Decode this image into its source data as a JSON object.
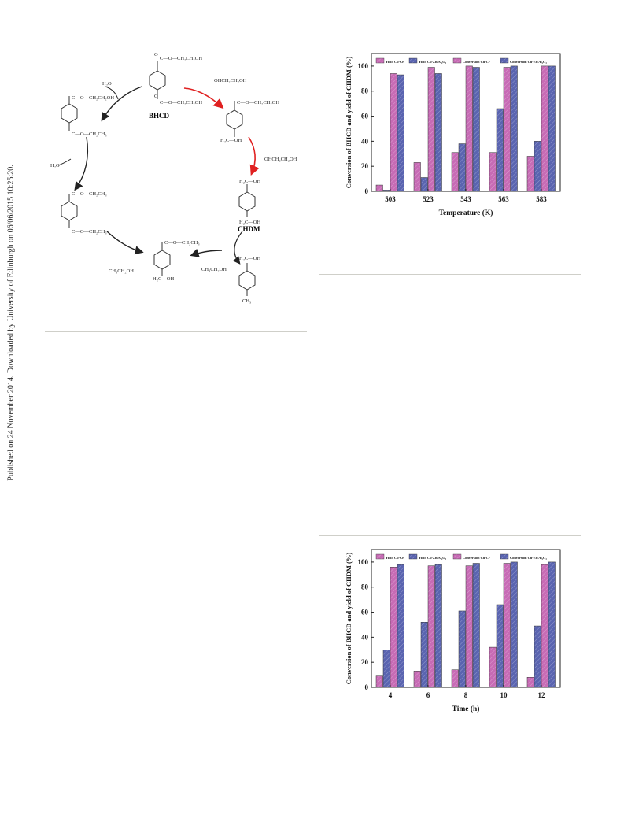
{
  "sidebar_text": "Published on 24 November 2014. Downloaded by University of Edinburgh on 06/06/2015 10:25:20.",
  "scheme": {
    "bhcd": "BHCD",
    "chdm": "CHDM",
    "labels": {
      "top_ester1": "C—O—CH₂CH₂OH",
      "top_ester2": "C—O—CH₂CH₂OH",
      "h2o_1": "H₂O",
      "h2o_2": "H₂O",
      "eg_out_1": "OHCH₂CH₂OH",
      "eg_out_2": "OHCH₂CH₂OH",
      "ethanol_1": "CH₃CH₂OH",
      "ethanol_2": "CH₃CH₂OH",
      "left_top_a": "C—O—CH₂CH₂OH",
      "left_top_b": "C—O—CH₂CH₃",
      "left_mid_a": "C—O—CH₂CH₃",
      "left_mid_b": "C—O—CH₂CH₃",
      "right_top_a": "C—O—CH₂CH₂OH",
      "right_top_b": "H₂C—OH",
      "chdm_a": "H₂C—OH",
      "chdm_b": "H₂C—OH",
      "bottom_a": "C—O—CH₂CH₃",
      "bottom_b": "H₂C—OH",
      "methyl_a": "H₂C—OH",
      "methyl_b": "CH₃",
      "o": "O"
    }
  },
  "chart_data": [
    {
      "type": "bar",
      "ylabel": "Conversion of BHCD and yield of CHDM (%)",
      "xlabel": "Temperature (K)",
      "categories": [
        "503",
        "523",
        "543",
        "563",
        "583"
      ],
      "ylim": [
        0,
        110
      ],
      "yticks": [
        "0",
        "20",
        "40",
        "60",
        "80",
        "100"
      ],
      "legend_position": "top",
      "series": [
        {
          "name": "Yield  Cu-Cr",
          "color": "#c76bb5",
          "values": [
            5,
            23,
            31,
            31,
            28
          ]
        },
        {
          "name": "Yield  Cu-Zn/Al₂O₃",
          "color": "#5a64b0",
          "values": [
            1,
            11,
            38,
            66,
            40
          ]
        },
        {
          "name": "Conversion  Cu-Cr",
          "color": "#c76bb5",
          "values": [
            94,
            99,
            100,
            99,
            100
          ]
        },
        {
          "name": "Conversion  Cu-Zn/Al₂O₃",
          "color": "#5a64b0",
          "values": [
            93,
            94,
            99,
            100,
            100
          ]
        }
      ]
    },
    {
      "type": "bar",
      "ylabel": "Conversion of BHCD and yield of CHDM (%)",
      "xlabel": "Time (h)",
      "categories": [
        "4",
        "6",
        "8",
        "10",
        "12"
      ],
      "ylim": [
        0,
        110
      ],
      "yticks": [
        "0",
        "20",
        "40",
        "60",
        "80",
        "100"
      ],
      "legend_position": "top",
      "series": [
        {
          "name": "Yield  Cu-Cr",
          "color": "#c76bb5",
          "values": [
            9,
            13,
            14,
            32,
            8
          ]
        },
        {
          "name": "Yield  Cu-Zn/Al₂O₃",
          "color": "#5a64b0",
          "values": [
            30,
            52,
            61,
            66,
            49
          ]
        },
        {
          "name": "Conversion  Cu-Cr",
          "color": "#c76bb5",
          "values": [
            96,
            97,
            97,
            99,
            98
          ]
        },
        {
          "name": "Conversion  Cu-Zn/Al₂O₃",
          "color": "#5a64b0",
          "values": [
            98,
            98,
            99,
            100,
            100
          ]
        }
      ]
    }
  ]
}
